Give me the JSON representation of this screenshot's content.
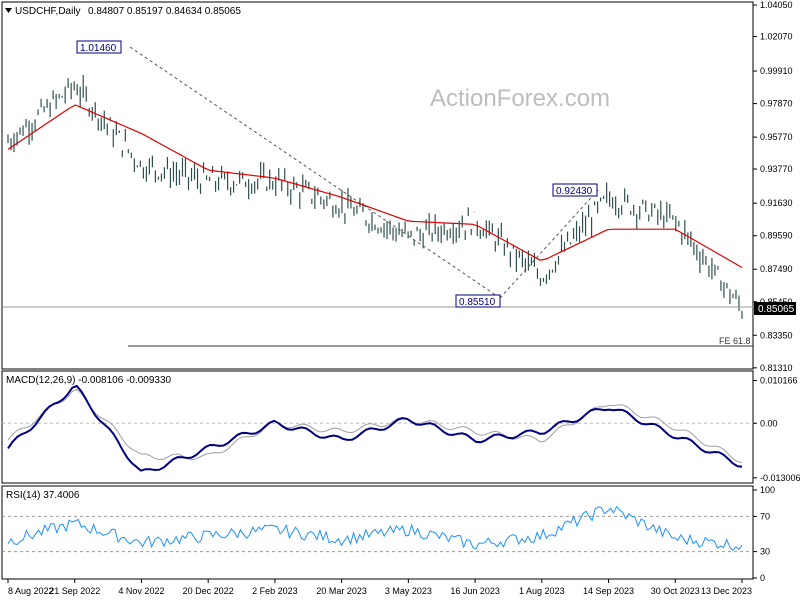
{
  "header": {
    "symbol": "USDCHF,Daily",
    "ohlc": "0.84807 0.85197 0.84634 0.85065"
  },
  "watermark": "ActionForex.com",
  "colors": {
    "price_bars": "#2f4f4f",
    "sma": "#dd0000",
    "macd_line": "#000080",
    "macd_signal": "#a0a0a0",
    "rsi_line": "#1e90ff",
    "dashed_guides": "#555555",
    "current_price_tag": "#000000"
  },
  "panels": {
    "price": {
      "y_ticks": [
        "1.04050",
        "1.02070",
        "0.99910",
        "0.97870",
        "0.95770",
        "0.93770",
        "0.91630",
        "0.89590",
        "0.87490",
        "0.85450",
        "0.83350",
        "0.81310"
      ],
      "current_price": "0.85065"
    },
    "macd": {
      "label": "MACD(12,26,9) -0.008106 -0.009330",
      "y_ticks": [
        "0.010166",
        "0.00",
        "-0.013006"
      ]
    },
    "rsi": {
      "label": "RSI(14) 37.4006",
      "y_ticks": [
        "100",
        "70",
        "30",
        "0"
      ]
    }
  },
  "x_labels": [
    "8 Aug 2022",
    "21 Sep 2022",
    "4 Nov 2022",
    "20 Dec 2022",
    "2 Feb 2023",
    "20 Mar 2023",
    "3 May 2023",
    "16 Jun 2023",
    "1 Aug 2023",
    "14 Sep 2023",
    "30 Oct 2023",
    "13 Dec 2023"
  ],
  "annotations": {
    "high_label": "1.01460",
    "low_label": "0.85510",
    "mid_high_label": "0.92430",
    "fe_label": "FE 61.8"
  },
  "chart_data": [
    {
      "type": "line",
      "title": "USDCHF,Daily",
      "x": [
        "8 Aug 2022",
        "21 Sep 2022",
        "4 Nov 2022",
        "20 Dec 2022",
        "2 Feb 2023",
        "20 Mar 2023",
        "3 May 2023",
        "16 Jun 2023",
        "1 Aug 2023",
        "14 Sep 2023",
        "30 Oct 2023",
        "13 Dec 2023"
      ],
      "series": [
        {
          "name": "Close",
          "values": [
            0.955,
            0.99,
            0.94,
            0.93,
            0.93,
            0.915,
            0.895,
            0.905,
            0.87,
            0.92,
            0.905,
            0.85
          ]
        },
        {
          "name": "SMA",
          "values": [
            0.95,
            0.978,
            0.96,
            0.937,
            0.932,
            0.92,
            0.905,
            0.903,
            0.88,
            0.9,
            0.9,
            0.876
          ]
        }
      ],
      "ylim": [
        0.813,
        1.0405
      ]
    },
    {
      "type": "line",
      "title": "MACD(12,26,9) -0.008106 -0.009330",
      "x": [
        "8 Aug 2022",
        "21 Sep 2022",
        "4 Nov 2022",
        "20 Dec 2022",
        "2 Feb 2023",
        "20 Mar 2023",
        "3 May 2023",
        "16 Jun 2023",
        "1 Aug 2023",
        "14 Sep 2023",
        "30 Oct 2023",
        "13 Dec 2023"
      ],
      "series": [
        {
          "values": [
            -0.006,
            0.009,
            -0.012,
            -0.006,
            0.0,
            -0.004,
            0.001,
            -0.004,
            -0.002,
            0.004,
            -0.003,
            -0.01
          ]
        },
        {
          "values": [
            -0.004,
            0.008,
            -0.008,
            -0.008,
            0.0,
            -0.002,
            0.001,
            -0.002,
            -0.004,
            0.005,
            -0.001,
            -0.009
          ]
        }
      ],
      "ylim": [
        -0.014,
        0.0115
      ]
    },
    {
      "type": "line",
      "title": "RSI(14) 37.4006",
      "x": [
        "8 Aug 2022",
        "21 Sep 2022",
        "4 Nov 2022",
        "20 Dec 2022",
        "2 Feb 2023",
        "20 Mar 2023",
        "3 May 2023",
        "16 Jun 2023",
        "1 Aug 2023",
        "14 Sep 2023",
        "30 Oct 2023",
        "13 Dec 2023"
      ],
      "series": [
        {
          "values": [
            42,
            62,
            40,
            48,
            55,
            44,
            55,
            38,
            48,
            80,
            45,
            37
          ]
        }
      ],
      "ylim": [
        0,
        100
      ]
    }
  ]
}
